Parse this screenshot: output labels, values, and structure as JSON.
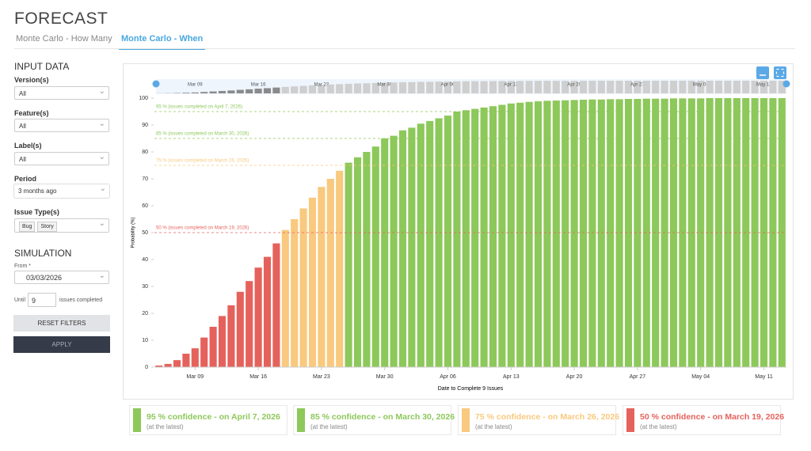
{
  "header": {
    "title": "FORECAST",
    "tabs": [
      "Monte Carlo - How Many",
      "Monte Carlo - When"
    ]
  },
  "sidebar": {
    "input_title": "INPUT DATA",
    "fields": [
      {
        "label": "Version(s)",
        "value": "All"
      },
      {
        "label": "Feature(s)",
        "value": "All"
      },
      {
        "label": "Label(s)",
        "value": "All"
      },
      {
        "label": "Period",
        "value": "3 months ago"
      },
      {
        "label": "Issue Type(s)",
        "tags": [
          "Bug",
          "Story"
        ]
      }
    ],
    "simulation_title": "SIMULATION",
    "from_label": "From *",
    "from_value": "03/03/2026",
    "until_label": "Until",
    "until_value": "9",
    "until_suffix": "issues completed",
    "reset": "RESET FILTERS",
    "apply": "APPLY"
  },
  "chart_data": {
    "type": "bar",
    "x_label": "Date to Complete 9 Issues",
    "y_label": "Probability (%)",
    "categories": [
      null,
      null,
      null,
      null,
      "Mar 09",
      null,
      null,
      null,
      null,
      null,
      null,
      "Mar 16",
      null,
      null,
      null,
      null,
      null,
      null,
      "Mar 23",
      null,
      null,
      null,
      null,
      null,
      null,
      "Mar 30",
      null,
      null,
      null,
      null,
      null,
      null,
      "Apr 06",
      null,
      null,
      null,
      null,
      null,
      null,
      "Apr 13",
      null,
      null,
      null,
      null,
      null,
      null,
      "Apr 20",
      null,
      null,
      null,
      null,
      null,
      null,
      "Apr 27",
      null,
      null,
      null,
      null,
      null,
      null,
      "May 04",
      null,
      null,
      null,
      null,
      null,
      null,
      "May 11",
      null,
      null
    ],
    "values": [
      0.6,
      1.2,
      2.6,
      5,
      7,
      11,
      15,
      19,
      23,
      28,
      32,
      37,
      41,
      46,
      51,
      55,
      59,
      63,
      67,
      70,
      73,
      76,
      78,
      80,
      82,
      85,
      86,
      88,
      89,
      90.5,
      91.5,
      92.5,
      93.5,
      95,
      95.5,
      96,
      96.5,
      97,
      97.5,
      98,
      98.3,
      98.6,
      98.8,
      99,
      99.1,
      99.2,
      99.3,
      99.4,
      99.5,
      99.5,
      99.6,
      99.6,
      99.7,
      99.7,
      99.8,
      99.8,
      99.8,
      99.9,
      99.9,
      99.9,
      99.9,
      100,
      100,
      100,
      100,
      100,
      100,
      100,
      100,
      100
    ],
    "ylim": [
      0,
      100
    ],
    "yticks": [
      0,
      10,
      20,
      30,
      40,
      50,
      60,
      70,
      80,
      90,
      100
    ],
    "confidence_levels": [
      {
        "value": 95,
        "color": "#8dc85a",
        "line_label": "95 % (issues completed on April 7, 2026)",
        "card_title": "95 % confidence - on April 7, 2026",
        "card_note": "(at the latest)"
      },
      {
        "value": 85,
        "color": "#8dc85a",
        "line_label": "85 % (issues completed on March 30, 2026)",
        "card_title": "85 % confidence - on March 30, 2026",
        "card_note": "(at the latest)"
      },
      {
        "value": 75,
        "color": "#f8c97e",
        "line_label": "75 % (issues completed on March 26, 2026)",
        "card_title": "75 % confidence - on March 26, 2026",
        "card_note": "(at the latest)"
      },
      {
        "value": 50,
        "color": "#e5625c",
        "line_label": "50 % (issues completed on March 19, 2026)",
        "card_title": "50 % confidence - on March 19, 2026",
        "card_note": "(at the latest)"
      }
    ]
  }
}
